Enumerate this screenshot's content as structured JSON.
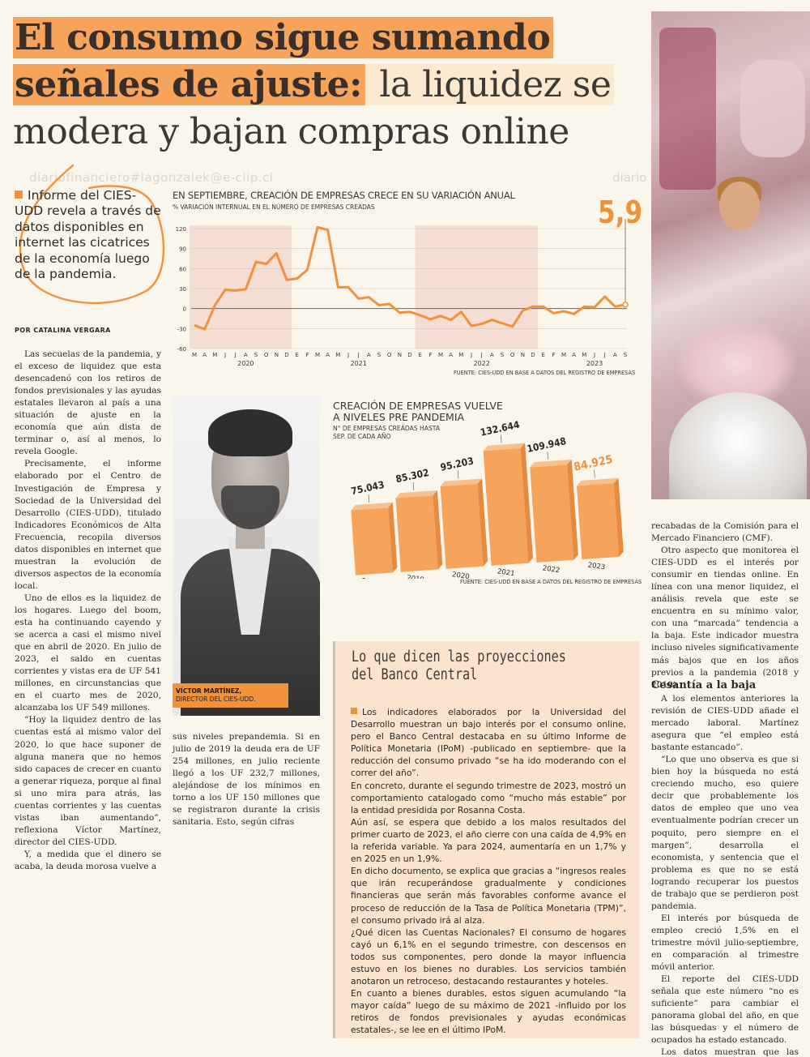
{
  "headline": {
    "bold1": "El consumo sigue sumando",
    "bold2": "señales de ajuste:",
    "light2": " la liquidez se",
    "line3": "modera y bajan compras online"
  },
  "watermark": "diariofinanciero#lagonzalek@e-clip.cl",
  "watermark2": "diario",
  "intro": "Informe del CIES-UDD revela a través de datos disponibles en internet las cicatrices de la economía luego de la pandemia.",
  "byline": "POR CATALINA VERGARA",
  "line_chart": {
    "title": "EN SEPTIEMBRE, CREACIÓN DE EMPRESAS CRECE EN SU VARIACIÓN ANUAL",
    "subtitle": "% VARIACIÓN INTERNUAL EN EL NÚMERO DE EMPRESAS CREADAS",
    "highlight": "5,9",
    "source": "FUENTE: CIES-UDD EN BASE A DATOS DEL REGISTRO DE EMPRESAS",
    "month_ticks": [
      "M",
      "A",
      "M",
      "J",
      "J",
      "A",
      "S",
      "O",
      "N",
      "D",
      "E",
      "F",
      "M",
      "A",
      "M",
      "J",
      "J",
      "A",
      "S",
      "O",
      "N",
      "D",
      "E",
      "F",
      "M",
      "A",
      "M",
      "J",
      "J",
      "A",
      "S",
      "O",
      "N",
      "D",
      "E",
      "F",
      "M",
      "A",
      "M",
      "J",
      "J",
      "A",
      "S"
    ],
    "years": [
      "2020",
      "2021",
      "2022",
      "2023"
    ],
    "y_ticks": [
      "120",
      "90",
      "60",
      "30",
      "0",
      "-30",
      "-60"
    ]
  },
  "bar_chart": {
    "title": "CREACIÓN DE EMPRESAS VUELVE A NIVELES PRE PANDEMIA",
    "subtitle": "N° DE EMPRESAS CREADAS HASTA SEP. DE CADA AÑO",
    "source": "FUENTE: CIES-UDD EN BASE A DATOS DEL REGISTRO DE EMPRESAS",
    "bar_color": "#f6a35c",
    "highlight_color": "#f0913c"
  },
  "chart_data": [
    {
      "type": "line",
      "title": "EN SEPTIEMBRE, CREACIÓN DE EMPRESAS CRECE EN SU VARIACIÓN ANUAL",
      "ylabel": "% VARIACIÓN INTERNUAL EN EL NÚMERO DE EMPRESAS CREADAS",
      "ylim": [
        -60,
        120
      ],
      "x": [
        "2020-03",
        "2020-04",
        "2020-05",
        "2020-06",
        "2020-07",
        "2020-08",
        "2020-09",
        "2020-10",
        "2020-11",
        "2020-12",
        "2021-01",
        "2021-02",
        "2021-03",
        "2021-04",
        "2021-05",
        "2021-06",
        "2021-07",
        "2021-08",
        "2021-09",
        "2021-10",
        "2021-11",
        "2021-12",
        "2022-01",
        "2022-02",
        "2022-03",
        "2022-04",
        "2022-05",
        "2022-06",
        "2022-07",
        "2022-08",
        "2022-09",
        "2022-10",
        "2022-11",
        "2022-12",
        "2023-01",
        "2023-02",
        "2023-03",
        "2023-04",
        "2023-05",
        "2023-06",
        "2023-07",
        "2023-08",
        "2023-09"
      ],
      "values": [
        -25,
        -31,
        5,
        28,
        27,
        29,
        70,
        67,
        83,
        43,
        45,
        58,
        122,
        118,
        32,
        32,
        15,
        17,
        5,
        7,
        -6,
        -5,
        -10,
        -16,
        -11,
        -17,
        -5,
        -26,
        -23,
        -17,
        -22,
        -27,
        -3,
        3,
        3,
        -7,
        -4,
        -8,
        3,
        2,
        18,
        3,
        5.9
      ],
      "shaded_ranges": [
        [
          "2020-03",
          "2020-12"
        ],
        [
          "2022-01",
          "2022-12"
        ]
      ],
      "grid": true
    },
    {
      "type": "bar",
      "title": "CREACIÓN DE EMPRESAS VUELVE A NIVELES PRE PANDEMIA",
      "ylabel": "N° DE EMPRESAS CREADAS HASTA SEP. DE CADA AÑO",
      "categories": [
        "2018",
        "2019",
        "2020",
        "2021",
        "2022",
        "2023"
      ],
      "values": [
        75043,
        85302,
        95203,
        132644,
        109948,
        84925
      ],
      "labels": [
        "75.043",
        "85.302",
        "95.203",
        "132.644",
        "109.948",
        "84.925"
      ]
    }
  ],
  "portrait": {
    "name": "VÍCTOR MARTÍNEZ,",
    "role": "DIRECTOR DEL CIES-UDD."
  },
  "col1": [
    "Las secuelas de la pandemia, y el exceso de liquidez que esta desencadenó con los retiros de fondos previsionales y las ayudas estatales llevaron al país a una situación de ajuste en la economía que aún dista de terminar o, así al menos, lo revela Google.",
    "Precisamente, el informe elaborado por el Centro de Investigación de Empresa y Sociedad de la Universidad del Desarrollo (CIES-UDD), titulado Indicadores Económicos de Alta Frecuencia, recopila diversos datos disponibles en internet que muestran la evolución de diversos aspectos de la economía local.",
    "Uno de ellos es la liquidez de los hogares. Luego del boom, esta ha continuando cayendo y se acerca a casi el mismo nivel que en abril de 2020. En julio de 2023, el saldo en cuentas corrientes y vistas era de UF 541 millones, en circunstancias que en el cuarto mes de 2020, alcanzaba los UF 549 millones.",
    "“Hoy la liquidez dentro de las cuentas está al mismo valor del 2020, lo que hace suponer de alguna manera que no hemos sido capaces de crecer en cuanto a generar riqueza, porque al final si uno mira para atrás, las cuentas corrientes y las cuentas vistas iban aumentando”, reflexiona Víctor Martínez, director del CIES-UDD.",
    "Y, a medida que el dinero se acaba, la deuda morosa vuelve a"
  ],
  "col2": "sus niveles prepandemia. Si en julio de 2019 la deuda era de UF 254 millones, en julio reciente llegó a los UF 232,7 millones, alejándose de los mínimos en torno a los UF 150 millones que se registraron durante la crisis sanitaria. Esto, según cifras",
  "box": {
    "title1": "Lo que dicen las proyecciones",
    "title2": "del Banco Central",
    "paragraphs": [
      "Los indicadores elaborados por la Universidad del Desarrollo muestran un bajo interés por el consumo online, pero el Banco Central destacaba en su último Informe de Política Monetaria (IPoM) -publicado en septiembre- que la reducción del consumo privado “se ha ido moderando con el correr del año”.",
      "En concreto, durante el segundo trimestre de 2023, mostró un comportamiento catalogado como “mucho más estable” por la entidad presidida por Rosanna Costa.",
      "Aún así, se espera que debido a los malos resultados del primer cuarto de 2023, el año cierre con una caída de 4,9% en la referida variable. Ya para 2024, aumentaría en un 1,7% y en 2025 en un 1,9%.",
      "En dicho documento, se explica que gracias a “ingresos reales que irán recuperándose gradualmente y condiciones financieras que serán más favorables conforme avance el proceso de reducción de la Tasa de Política Monetaria (TPM)”, el consumo privado irá al alza.",
      "¿Qué dicen las Cuentas Nacionales? El consumo de hogares cayó un 6,1% en el segundo trimestre, con descensos en todos sus componentes, pero donde la mayor influencia estuvo en los bienes no durables. Los servicios también anotaron un retroceso, destacando restaurantes y hoteles.",
      "En cuanto a bienes durables, estos siguen acumulando “la mayor caída” luego de su máximo de 2021 -influido por los retiros de fondos previsionales y ayudas económicas estatales-, se lee en el último IPoM."
    ]
  },
  "col4": [
    "recabadas de la Comisión para el Mercado Financiero (CMF).",
    "Otro aspecto que monitorea el CIES-UDD es el interés por consumir en tiendas online. En línea con una menor liquidez, el análisis revela que este se encuentra en su mínimo valor, con una “marcada” tendencia a la baja. Este indicador muestra incluso niveles significativamente más bajos que en los años previos a la pandemia (2018 y 2019)."
  ],
  "subhead": "Cesantía a la baja",
  "col4b": [
    "A los elementos anteriores la revisión de CIES-UDD añade el mercado laboral. Martínez asegura que “el empleo está bastante estancado”.",
    "“Lo que uno observa es que si bien hoy la búsqueda no está creciendo mucho, eso quiere decir que probablemente los datos de empleo que uno vea eventualmente podrían crecer un poquito, pero siempre en el margen”, desarrolla el economista, y sentencia que el problema es que no se está logrando recuperar los puestos de trabajo que se perdieron post pandemia.",
    "El interés por búsqueda de empleo creció 1,5% en el trimestre móvil julio-septiembre, en comparación al trimestre móvil anterior.",
    "El reporte del CIES-UDD señala que este número “no es suficiente” para cambiar el panorama global del año, en que las búsquedas y el número de ocupados ha estado estancado.",
    "Los datos muestran que las búsquedas en internet relacionadas con la cesantía se han detenido. En"
  ]
}
